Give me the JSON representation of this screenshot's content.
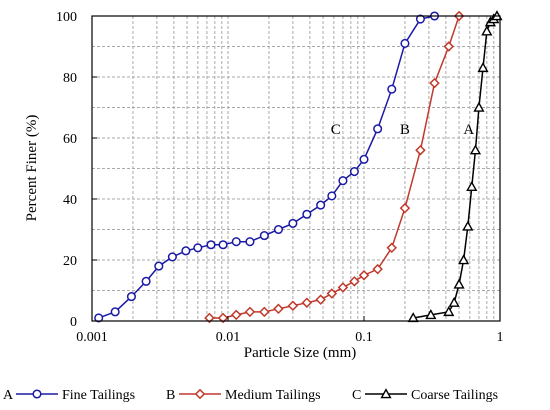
{
  "chart_data": {
    "type": "line",
    "xscale": "log",
    "xlim": [
      0.001,
      1
    ],
    "ylim": [
      0,
      100
    ],
    "xlabel": "Particle Size  (mm)",
    "ylabel": "Percent Finer  (%)",
    "xticks": [
      "0.001",
      "0.01",
      "0.1",
      "1"
    ],
    "yticks": [
      "0",
      "20",
      "40",
      "60",
      "80",
      "100"
    ],
    "grid": true,
    "legend_position": "bottom",
    "legend": [
      {
        "key": "A",
        "label": "Fine Tailings"
      },
      {
        "key": "B",
        "label": "Medium Tailings"
      },
      {
        "key": "C",
        "label": "Coarse Tailings"
      }
    ],
    "curve_labels": [
      {
        "text": "C",
        "x": 0.062,
        "y": 63
      },
      {
        "text": "B",
        "x": 0.2,
        "y": 63
      },
      {
        "text": "A",
        "x": 0.59,
        "y": 63
      }
    ],
    "series": [
      {
        "name": "Fine Tailings",
        "color": "#1a1aa6",
        "marker": "circle",
        "x": [
          0.00112,
          0.00148,
          0.00195,
          0.0025,
          0.0031,
          0.0039,
          0.0049,
          0.006,
          0.0075,
          0.0092,
          0.0115,
          0.0145,
          0.0185,
          0.0235,
          0.03,
          0.038,
          0.048,
          0.058,
          0.07,
          0.085,
          0.1,
          0.126,
          0.16,
          0.2,
          0.26,
          0.33
        ],
        "y": [
          1,
          3,
          8,
          13,
          18,
          21,
          23,
          24,
          25,
          25,
          26,
          26,
          28,
          30,
          32,
          35,
          38,
          41,
          46,
          49,
          53,
          63,
          76,
          91,
          99,
          100
        ]
      },
      {
        "name": "Medium Tailings",
        "color": "#c0392b",
        "marker": "diamond",
        "x": [
          0.0073,
          0.0092,
          0.0115,
          0.0145,
          0.0185,
          0.0235,
          0.03,
          0.038,
          0.048,
          0.058,
          0.07,
          0.085,
          0.1,
          0.126,
          0.16,
          0.2,
          0.26,
          0.33,
          0.42,
          0.5
        ],
        "y": [
          1,
          1,
          2,
          3,
          3,
          4,
          5,
          6,
          7,
          9,
          11,
          13,
          15,
          17,
          24,
          37,
          56,
          78,
          90,
          100
        ]
      },
      {
        "name": "Coarse Tailings",
        "color": "#000000",
        "marker": "triangle",
        "x": [
          0.23,
          0.31,
          0.42,
          0.46,
          0.5,
          0.54,
          0.58,
          0.62,
          0.66,
          0.7,
          0.75,
          0.8,
          0.85,
          0.9,
          0.95
        ],
        "y": [
          1,
          2,
          3,
          6,
          12,
          20,
          31,
          44,
          56,
          70,
          83,
          95,
          98,
          99,
          100
        ]
      }
    ]
  }
}
